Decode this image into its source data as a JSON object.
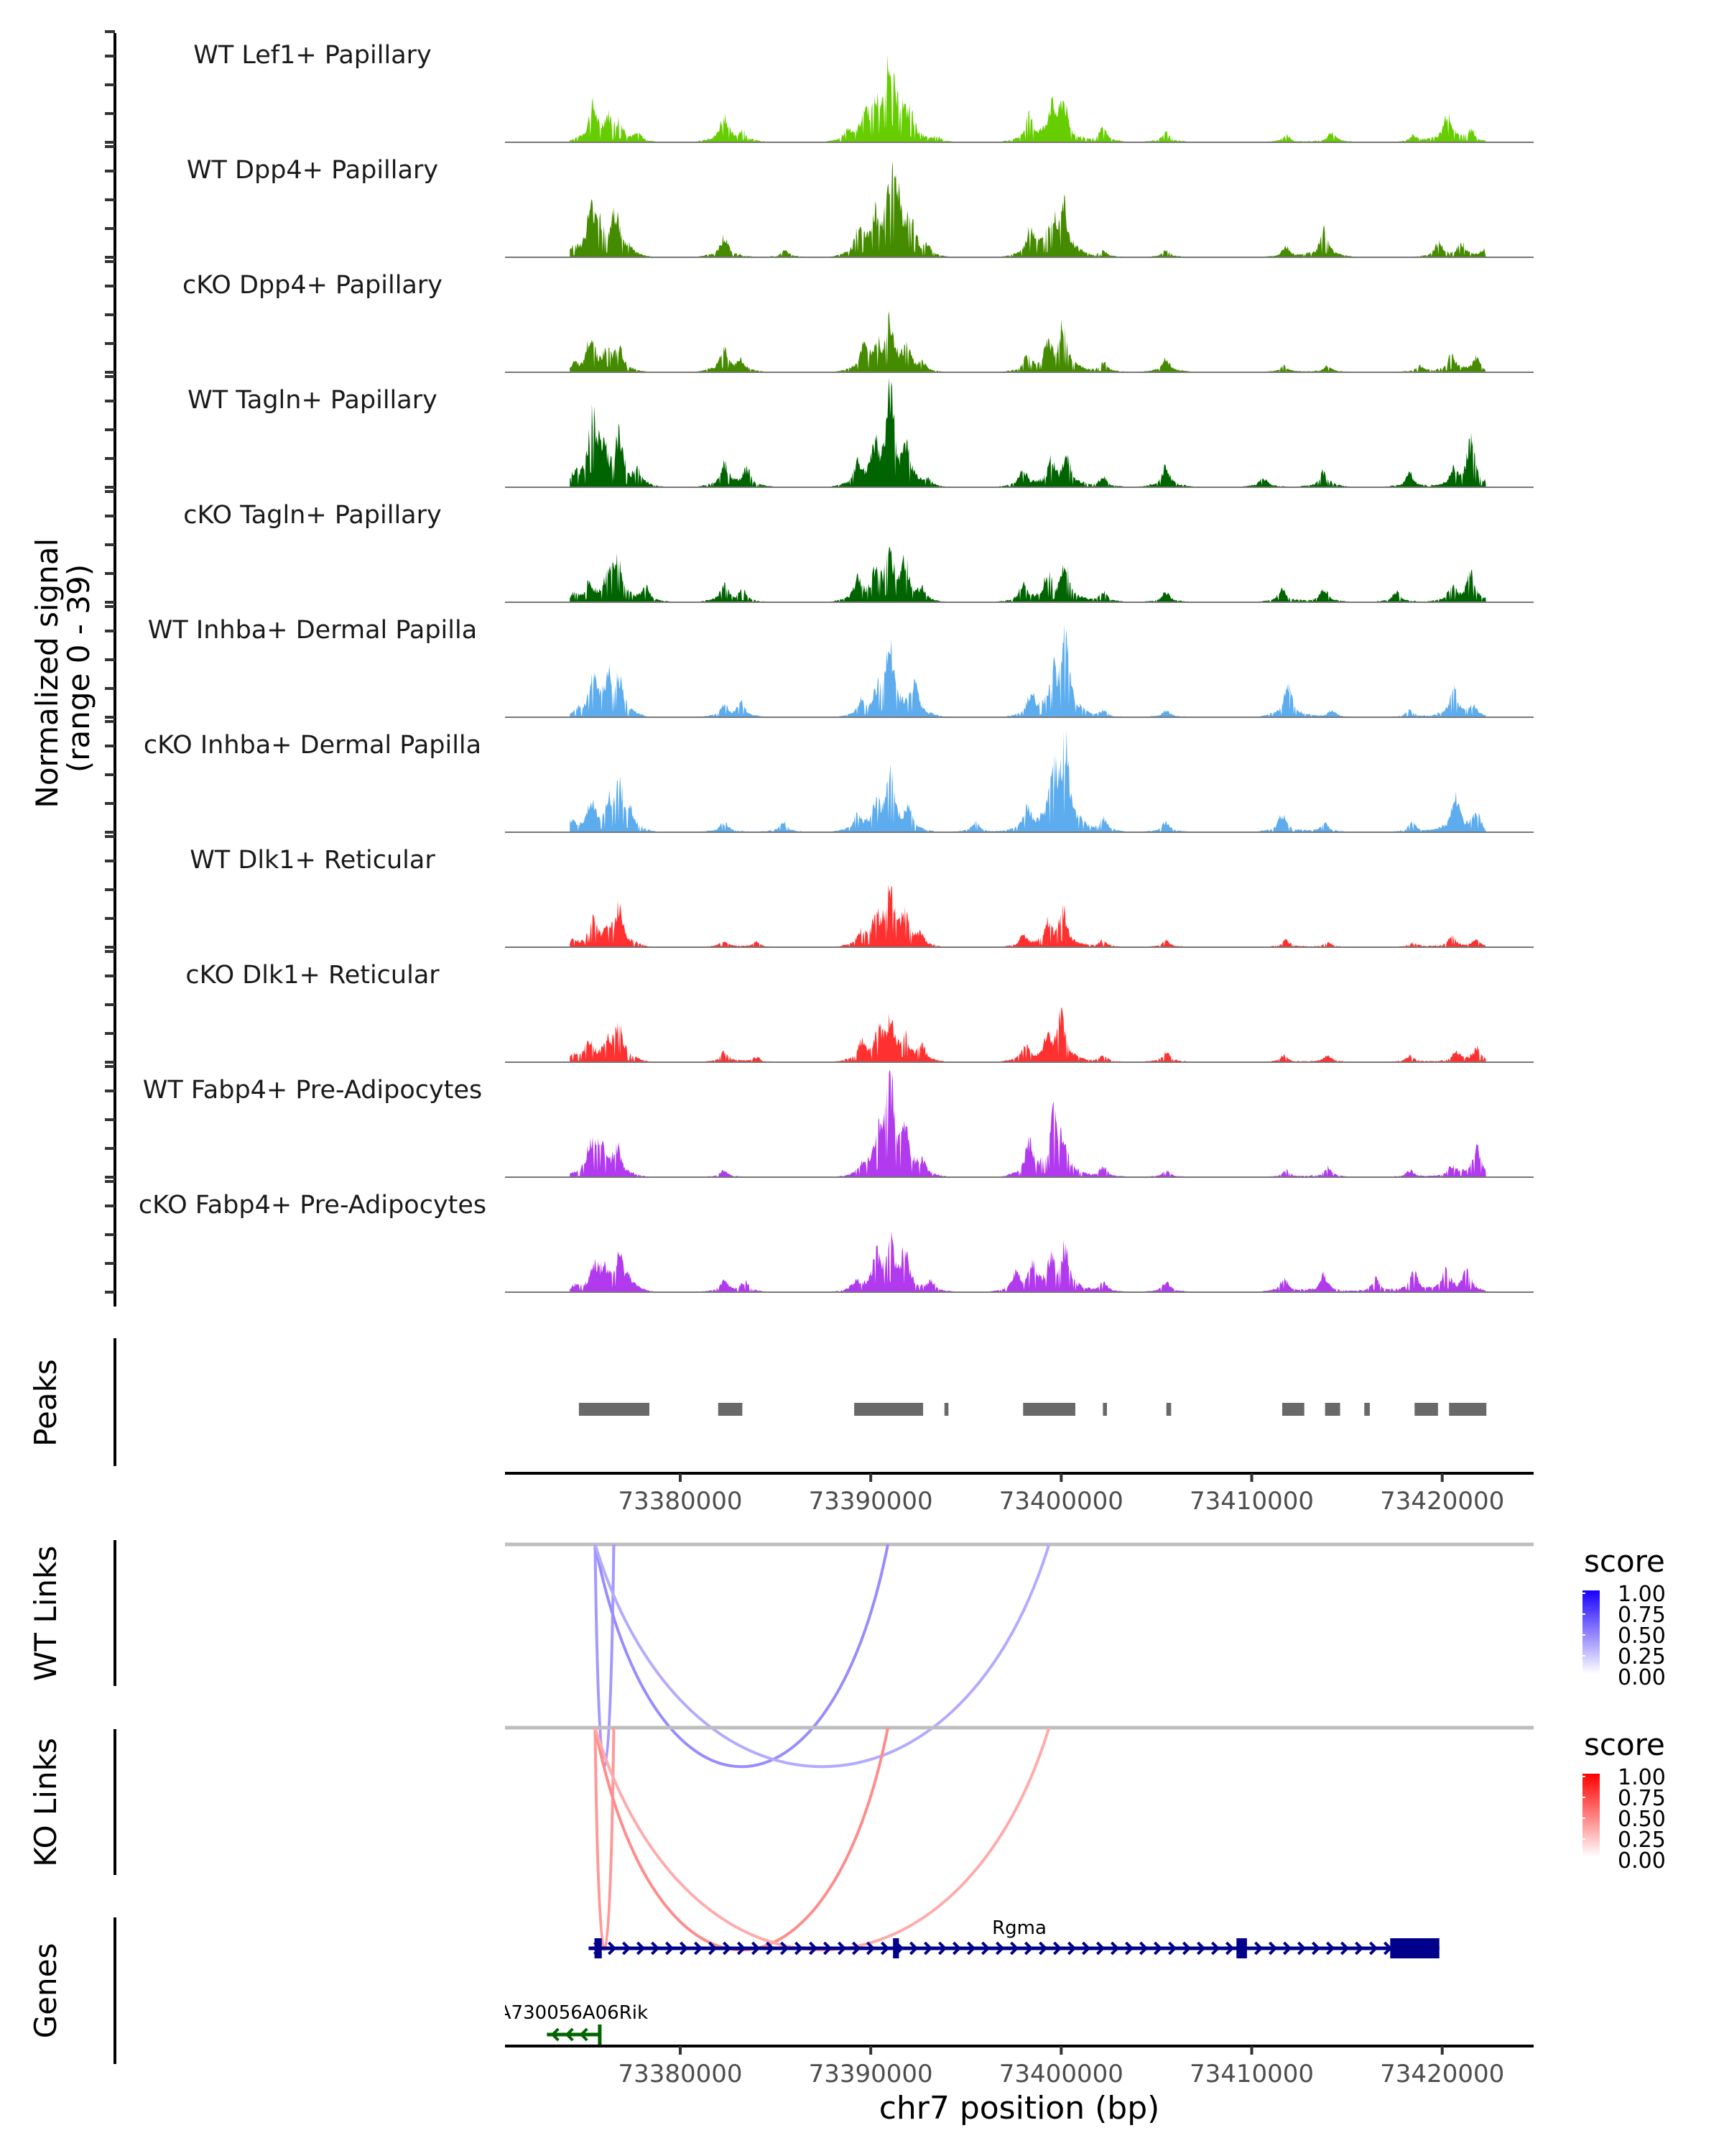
{
  "chart_data": {
    "type": "area",
    "title": "",
    "region": {
      "chrom": "chr7",
      "start": 73370800,
      "end": 73424800
    },
    "ylabel": "Normalized signal\n(range 0 - 39)",
    "ylabel_lines": [
      "Normalized signal",
      "(range 0 - 39)"
    ],
    "ylim": [
      0,
      39
    ],
    "xlabel": "chr7 position (bp)",
    "x_ticks": [
      73380000,
      73390000,
      73400000,
      73410000,
      73420000
    ],
    "x_tick_labels": [
      "73380000",
      "73390000",
      "73400000",
      "73410000",
      "73420000"
    ],
    "coverage_range_bp": [
      73374200,
      73422300
    ],
    "series": [
      {
        "name": "WT Lef1+ Papillary",
        "color": "#66CD00",
        "peaks": [
          [
            73375400,
            10
          ],
          [
            73376200,
            6
          ],
          [
            73376800,
            5
          ],
          [
            73377800,
            2
          ],
          [
            73382300,
            8
          ],
          [
            73383300,
            3
          ],
          [
            73388800,
            3
          ],
          [
            73389700,
            8
          ],
          [
            73390300,
            7
          ],
          [
            73391000,
            24
          ],
          [
            73391600,
            6
          ],
          [
            73392100,
            6
          ],
          [
            73393500,
            1.5
          ],
          [
            73398300,
            7
          ],
          [
            73399500,
            9
          ],
          [
            73400100,
            11
          ],
          [
            73402200,
            4
          ],
          [
            73405500,
            3
          ],
          [
            73411800,
            2
          ],
          [
            73414200,
            3
          ],
          [
            73418500,
            2
          ],
          [
            73420300,
            9
          ],
          [
            73421500,
            3
          ]
        ]
      },
      {
        "name": "WT Dpp4+ Papillary",
        "color": "#458B00",
        "peaks": [
          [
            73374300,
            2
          ],
          [
            73375300,
            11
          ],
          [
            73375700,
            9
          ],
          [
            73376600,
            12
          ],
          [
            73377300,
            2
          ],
          [
            73382300,
            6
          ],
          [
            73385500,
            2
          ],
          [
            73389400,
            8
          ],
          [
            73390200,
            9
          ],
          [
            73391000,
            18
          ],
          [
            73391400,
            15
          ],
          [
            73392100,
            9
          ],
          [
            73393000,
            2
          ],
          [
            73398400,
            8
          ],
          [
            73399500,
            11
          ],
          [
            73400100,
            16
          ],
          [
            73402200,
            2
          ],
          [
            73405500,
            2
          ],
          [
            73411800,
            3
          ],
          [
            73413800,
            8
          ],
          [
            73419800,
            4
          ],
          [
            73421000,
            4
          ],
          [
            73422200,
            2
          ]
        ]
      },
      {
        "name": "cKO Dpp4+ Papillary",
        "color": "#458B00",
        "peaks": [
          [
            73374400,
            1.5
          ],
          [
            73375300,
            10
          ],
          [
            73376200,
            5
          ],
          [
            73376800,
            6
          ],
          [
            73382300,
            7
          ],
          [
            73383200,
            3
          ],
          [
            73389600,
            6
          ],
          [
            73390300,
            7
          ],
          [
            73391000,
            14
          ],
          [
            73391900,
            6
          ],
          [
            73392700,
            2
          ],
          [
            73398200,
            4
          ],
          [
            73399300,
            8
          ],
          [
            73400100,
            13
          ],
          [
            73402200,
            3
          ],
          [
            73405500,
            4
          ],
          [
            73411700,
            2
          ],
          [
            73414000,
            2
          ],
          [
            73418800,
            2
          ],
          [
            73420500,
            5
          ],
          [
            73421800,
            4
          ]
        ]
      },
      {
        "name": "WT Tagln+ Papillary",
        "color": "#006400",
        "peaks": [
          [
            73374400,
            3
          ],
          [
            73375400,
            18
          ],
          [
            73375900,
            10
          ],
          [
            73376800,
            14
          ],
          [
            73377800,
            4
          ],
          [
            73382300,
            7
          ],
          [
            73383500,
            5
          ],
          [
            73389300,
            6
          ],
          [
            73390200,
            9
          ],
          [
            73391000,
            28
          ],
          [
            73391900,
            9
          ],
          [
            73393000,
            2
          ],
          [
            73398000,
            5
          ],
          [
            73399500,
            7
          ],
          [
            73400300,
            8
          ],
          [
            73402200,
            3
          ],
          [
            73405500,
            6
          ],
          [
            73410600,
            3
          ],
          [
            73413800,
            5
          ],
          [
            73418300,
            4
          ],
          [
            73420600,
            4
          ],
          [
            73421500,
            13
          ]
        ]
      },
      {
        "name": "cKO Tagln+ Papillary",
        "color": "#006400",
        "peaks": [
          [
            73374400,
            2
          ],
          [
            73375200,
            5
          ],
          [
            73376200,
            6
          ],
          [
            73376700,
            12
          ],
          [
            73378200,
            4
          ],
          [
            73382300,
            5
          ],
          [
            73383300,
            3
          ],
          [
            73389300,
            6
          ],
          [
            73390300,
            9
          ],
          [
            73391000,
            12
          ],
          [
            73391800,
            10
          ],
          [
            73392700,
            3
          ],
          [
            73398000,
            5
          ],
          [
            73399300,
            7
          ],
          [
            73400200,
            11
          ],
          [
            73402200,
            3
          ],
          [
            73405500,
            3
          ],
          [
            73411600,
            4
          ],
          [
            73413800,
            4
          ],
          [
            73417600,
            3
          ],
          [
            73420500,
            4
          ],
          [
            73421500,
            8
          ]
        ]
      },
      {
        "name": "WT Inhba+ Dermal Papilla",
        "color": "#5CACEE",
        "peaks": [
          [
            73374600,
            1
          ],
          [
            73375400,
            11
          ],
          [
            73376200,
            10
          ],
          [
            73376800,
            10
          ],
          [
            73382300,
            3
          ],
          [
            73383200,
            4
          ],
          [
            73389500,
            4
          ],
          [
            73390400,
            6
          ],
          [
            73391000,
            21
          ],
          [
            73392300,
            9
          ],
          [
            73398400,
            6
          ],
          [
            73399600,
            10
          ],
          [
            73400200,
            23
          ],
          [
            73402200,
            2
          ],
          [
            73405500,
            2
          ],
          [
            73411900,
            9
          ],
          [
            73414200,
            2
          ],
          [
            73418300,
            2
          ],
          [
            73420600,
            8
          ],
          [
            73421600,
            3
          ]
        ]
      },
      {
        "name": "cKO Inhba+ Dermal Papilla",
        "color": "#5CACEE",
        "peaks": [
          [
            73374300,
            3
          ],
          [
            73375300,
            8
          ],
          [
            73376300,
            7
          ],
          [
            73376800,
            12
          ],
          [
            73377400,
            4
          ],
          [
            73382300,
            3
          ],
          [
            73385400,
            3
          ],
          [
            73389300,
            5
          ],
          [
            73390300,
            7
          ],
          [
            73391000,
            16
          ],
          [
            73392000,
            6
          ],
          [
            73395500,
            3
          ],
          [
            73398200,
            7
          ],
          [
            73399600,
            15
          ],
          [
            73400200,
            24
          ],
          [
            73402200,
            4
          ],
          [
            73405500,
            3
          ],
          [
            73411600,
            5
          ],
          [
            73413800,
            3
          ],
          [
            73418400,
            3
          ],
          [
            73420700,
            10
          ],
          [
            73421800,
            5
          ]
        ]
      },
      {
        "name": "WT Dlk1+ Reticular",
        "color": "#FF3030",
        "peaks": [
          [
            73374400,
            1.5
          ],
          [
            73375400,
            7
          ],
          [
            73376200,
            4
          ],
          [
            73376800,
            11
          ],
          [
            73382300,
            2
          ],
          [
            73384000,
            1.5
          ],
          [
            73389500,
            4
          ],
          [
            73390300,
            6
          ],
          [
            73391000,
            19
          ],
          [
            73391800,
            7
          ],
          [
            73392600,
            3
          ],
          [
            73398000,
            3
          ],
          [
            73399300,
            6
          ],
          [
            73400100,
            10
          ],
          [
            73402200,
            2
          ],
          [
            73405500,
            2
          ],
          [
            73411800,
            2
          ],
          [
            73414000,
            1.5
          ],
          [
            73418500,
            1.5
          ],
          [
            73420500,
            3
          ],
          [
            73421800,
            2
          ]
        ]
      },
      {
        "name": "cKO Dlk1+ Reticular",
        "color": "#FF3030",
        "peaks": [
          [
            73374400,
            1.5
          ],
          [
            73375200,
            6
          ],
          [
            73376200,
            5
          ],
          [
            73376800,
            11
          ],
          [
            73382300,
            3
          ],
          [
            73384000,
            1.5
          ],
          [
            73389500,
            5
          ],
          [
            73390400,
            7
          ],
          [
            73391000,
            11
          ],
          [
            73391800,
            7
          ],
          [
            73392700,
            4
          ],
          [
            73398100,
            5
          ],
          [
            73399300,
            6
          ],
          [
            73400000,
            13
          ],
          [
            73402200,
            2
          ],
          [
            73405500,
            3
          ],
          [
            73411700,
            2
          ],
          [
            73414000,
            2
          ],
          [
            73418300,
            2
          ],
          [
            73420700,
            3
          ],
          [
            73421800,
            4
          ]
        ]
      },
      {
        "name": "WT Fabp4+ Pre-Adipocytes",
        "color": "#B23AEE",
        "peaks": [
          [
            73375300,
            9
          ],
          [
            73375800,
            9
          ],
          [
            73376700,
            8
          ],
          [
            73382300,
            2
          ],
          [
            73389500,
            3
          ],
          [
            73390400,
            9
          ],
          [
            73391000,
            27
          ],
          [
            73391800,
            11
          ],
          [
            73392700,
            4
          ],
          [
            73398300,
            9
          ],
          [
            73399600,
            17
          ],
          [
            73400100,
            8
          ],
          [
            73402200,
            3
          ],
          [
            73405500,
            2
          ],
          [
            73411800,
            2
          ],
          [
            73414000,
            3
          ],
          [
            73418300,
            2
          ],
          [
            73420500,
            3
          ],
          [
            73421800,
            9
          ]
        ]
      },
      {
        "name": "cKO Fabp4+ Pre-Adipocytes",
        "color": "#B23AEE",
        "peaks": [
          [
            73374500,
            1.5
          ],
          [
            73375500,
            7
          ],
          [
            73376000,
            5
          ],
          [
            73376800,
            9
          ],
          [
            73377300,
            3
          ],
          [
            73382300,
            3
          ],
          [
            73383400,
            3
          ],
          [
            73389200,
            3
          ],
          [
            73390300,
            9
          ],
          [
            73391000,
            13
          ],
          [
            73391800,
            10
          ],
          [
            73393200,
            3
          ],
          [
            73397600,
            5
          ],
          [
            73398500,
            7
          ],
          [
            73399500,
            8
          ],
          [
            73400200,
            12
          ],
          [
            73402200,
            3
          ],
          [
            73405500,
            3
          ],
          [
            73411700,
            4
          ],
          [
            73413800,
            5
          ],
          [
            73416500,
            4
          ],
          [
            73418500,
            6
          ],
          [
            73420200,
            6
          ],
          [
            73421300,
            6
          ]
        ]
      }
    ],
    "peaks_track": {
      "label": "Peaks",
      "color": "#696969",
      "regions": [
        [
          73374680,
          73378380
        ],
        [
          73381990,
          73383260
        ],
        [
          73389130,
          73392750
        ],
        [
          73393870,
          73394080
        ],
        [
          73398000,
          73400740
        ],
        [
          73402190,
          73402400
        ],
        [
          73405520,
          73405770
        ],
        [
          73411600,
          73412760
        ],
        [
          73413850,
          73414640
        ],
        [
          73415910,
          73416200
        ],
        [
          73418550,
          73419780
        ],
        [
          73420360,
          73422320
        ]
      ]
    },
    "links_tracks": [
      {
        "label": "WT Links",
        "legend_title": "score",
        "low_color": "#FFFFFF",
        "high_color": "#1A00FF",
        "legend_ticks": [
          "1.00",
          "0.75",
          "0.50",
          "0.25",
          "0.00"
        ],
        "links": [
          {
            "start": 73375530,
            "end": 73376510,
            "score": 0.4
          },
          {
            "start": 73375530,
            "end": 73390900,
            "score": 0.45
          },
          {
            "start": 73375530,
            "end": 73399360,
            "score": 0.33
          }
        ]
      },
      {
        "label": "KO Links",
        "legend_title": "score",
        "low_color": "#FFFFFF",
        "high_color": "#FF0000",
        "legend_ticks": [
          "1.00",
          "0.75",
          "0.50",
          "0.25",
          "0.00"
        ],
        "links": [
          {
            "start": 73375530,
            "end": 73376510,
            "score": 0.4
          },
          {
            "start": 73375530,
            "end": 73390900,
            "score": 0.45
          },
          {
            "start": 73375530,
            "end": 73399360,
            "score": 0.33
          }
        ]
      }
    ],
    "genes_track": {
      "label": "Genes",
      "genes": [
        {
          "name": "Rgma",
          "strand": "+",
          "color": "#00008B",
          "start": 73375190,
          "end": 73419850,
          "exons": [
            [
              73375500,
              73375880
            ],
            [
              73391170,
              73391480
            ],
            [
              73409200,
              73409750
            ],
            [
              73417270,
              73419850
            ]
          ]
        },
        {
          "name": "A730056A06Rik",
          "strand": "-",
          "color": "#006400",
          "start": 73373000,
          "end": 73375760,
          "exons": [
            [
              73375680,
              73375760
            ]
          ]
        }
      ]
    }
  }
}
